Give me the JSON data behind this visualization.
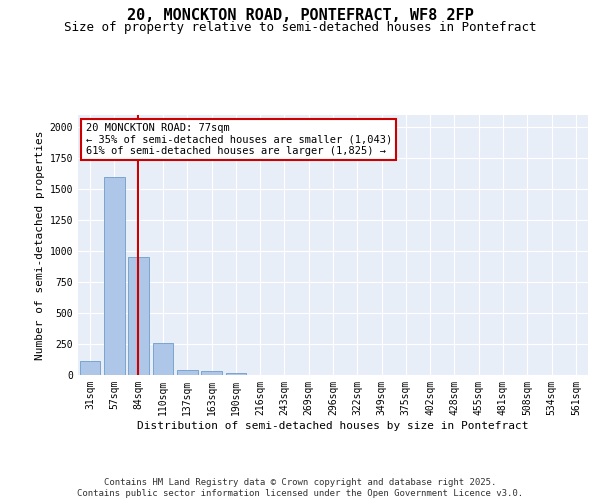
{
  "title1": "20, MONCKTON ROAD, PONTEFRACT, WF8 2FP",
  "title2": "Size of property relative to semi-detached houses in Pontefract",
  "xlabel": "Distribution of semi-detached houses by size in Pontefract",
  "ylabel": "Number of semi-detached properties",
  "categories": [
    "31sqm",
    "57sqm",
    "84sqm",
    "110sqm",
    "137sqm",
    "163sqm",
    "190sqm",
    "216sqm",
    "243sqm",
    "269sqm",
    "296sqm",
    "322sqm",
    "349sqm",
    "375sqm",
    "402sqm",
    "428sqm",
    "455sqm",
    "481sqm",
    "508sqm",
    "534sqm",
    "561sqm"
  ],
  "values": [
    115,
    1600,
    950,
    260,
    40,
    35,
    20,
    0,
    0,
    0,
    0,
    0,
    0,
    0,
    0,
    0,
    0,
    0,
    0,
    0,
    0
  ],
  "bar_color": "#aec6e8",
  "bar_edge_color": "#5a8fc2",
  "vline_x_index": 1.97,
  "vline_color": "#cc0000",
  "annotation_line1": "20 MONCKTON ROAD: 77sqm",
  "annotation_line2": "← 35% of semi-detached houses are smaller (1,043)",
  "annotation_line3": "61% of semi-detached houses are larger (1,825) →",
  "annotation_box_color": "#ffffff",
  "annotation_box_edge": "#cc0000",
  "footer": "Contains HM Land Registry data © Crown copyright and database right 2025.\nContains public sector information licensed under the Open Government Licence v3.0.",
  "ylim": [
    0,
    2100
  ],
  "background_color": "#e8eef8",
  "grid_color": "#ffffff",
  "title1_fontsize": 11,
  "title2_fontsize": 9,
  "axis_label_fontsize": 8,
  "tick_fontsize": 7,
  "footer_fontsize": 6.5,
  "annotation_fontsize": 7.5
}
